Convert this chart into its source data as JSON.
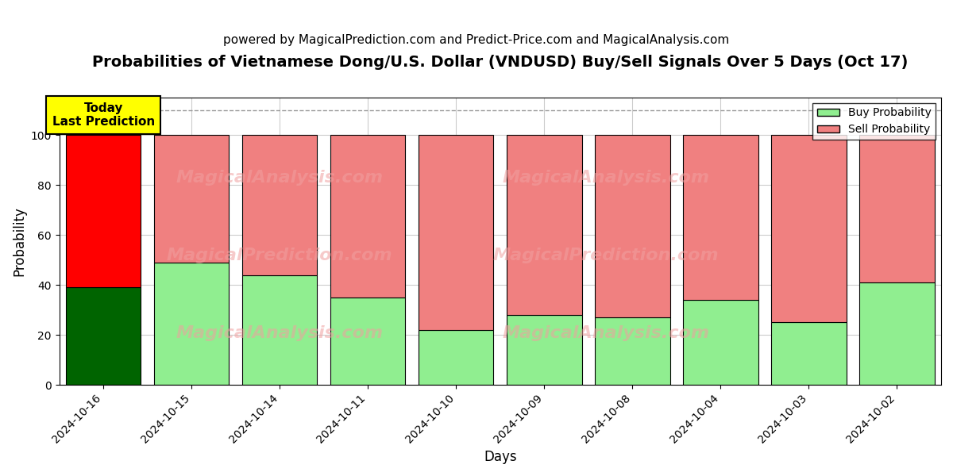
{
  "title": "Probabilities of Vietnamese Dong/U.S. Dollar (VNDUSD) Buy/Sell Signals Over 5 Days (Oct 17)",
  "subtitle": "powered by MagicalPrediction.com and Predict-Price.com and MagicalAnalysis.com",
  "xlabel": "Days",
  "ylabel": "Probability",
  "categories": [
    "2024-10-16",
    "2024-10-15",
    "2024-10-14",
    "2024-10-11",
    "2024-10-10",
    "2024-10-09",
    "2024-10-08",
    "2024-10-04",
    "2024-10-03",
    "2024-10-02"
  ],
  "buy_values": [
    39,
    49,
    44,
    35,
    22,
    28,
    27,
    34,
    25,
    41
  ],
  "sell_values": [
    61,
    51,
    56,
    65,
    78,
    72,
    73,
    66,
    75,
    59
  ],
  "today_bar_buy_color": "#006400",
  "today_bar_sell_color": "#FF0000",
  "other_bar_buy_color": "#90EE90",
  "other_bar_sell_color": "#F08080",
  "bar_edge_color": "black",
  "bar_edge_width": 0.8,
  "ylim": [
    0,
    115
  ],
  "yticks": [
    0,
    20,
    40,
    60,
    80,
    100
  ],
  "dashed_line_y": 110,
  "dashed_line_color": "#999999",
  "grid_color": "#cccccc",
  "background_color": "#ffffff",
  "watermark_lines": [
    "MagicalAnalysis.com",
    "MagicalPrediction.com"
  ],
  "watermark_color": "#f0a0a0",
  "watermark_alpha": 0.55,
  "today_label_text": "Today\nLast Prediction",
  "today_label_bg": "#FFFF00",
  "today_label_border": "black",
  "legend_buy_label": "Buy Probability",
  "legend_sell_label": "Sell Probability",
  "title_fontsize": 14,
  "subtitle_fontsize": 11,
  "axis_label_fontsize": 12,
  "tick_fontsize": 10,
  "legend_fontsize": 10,
  "bar_width": 0.85
}
